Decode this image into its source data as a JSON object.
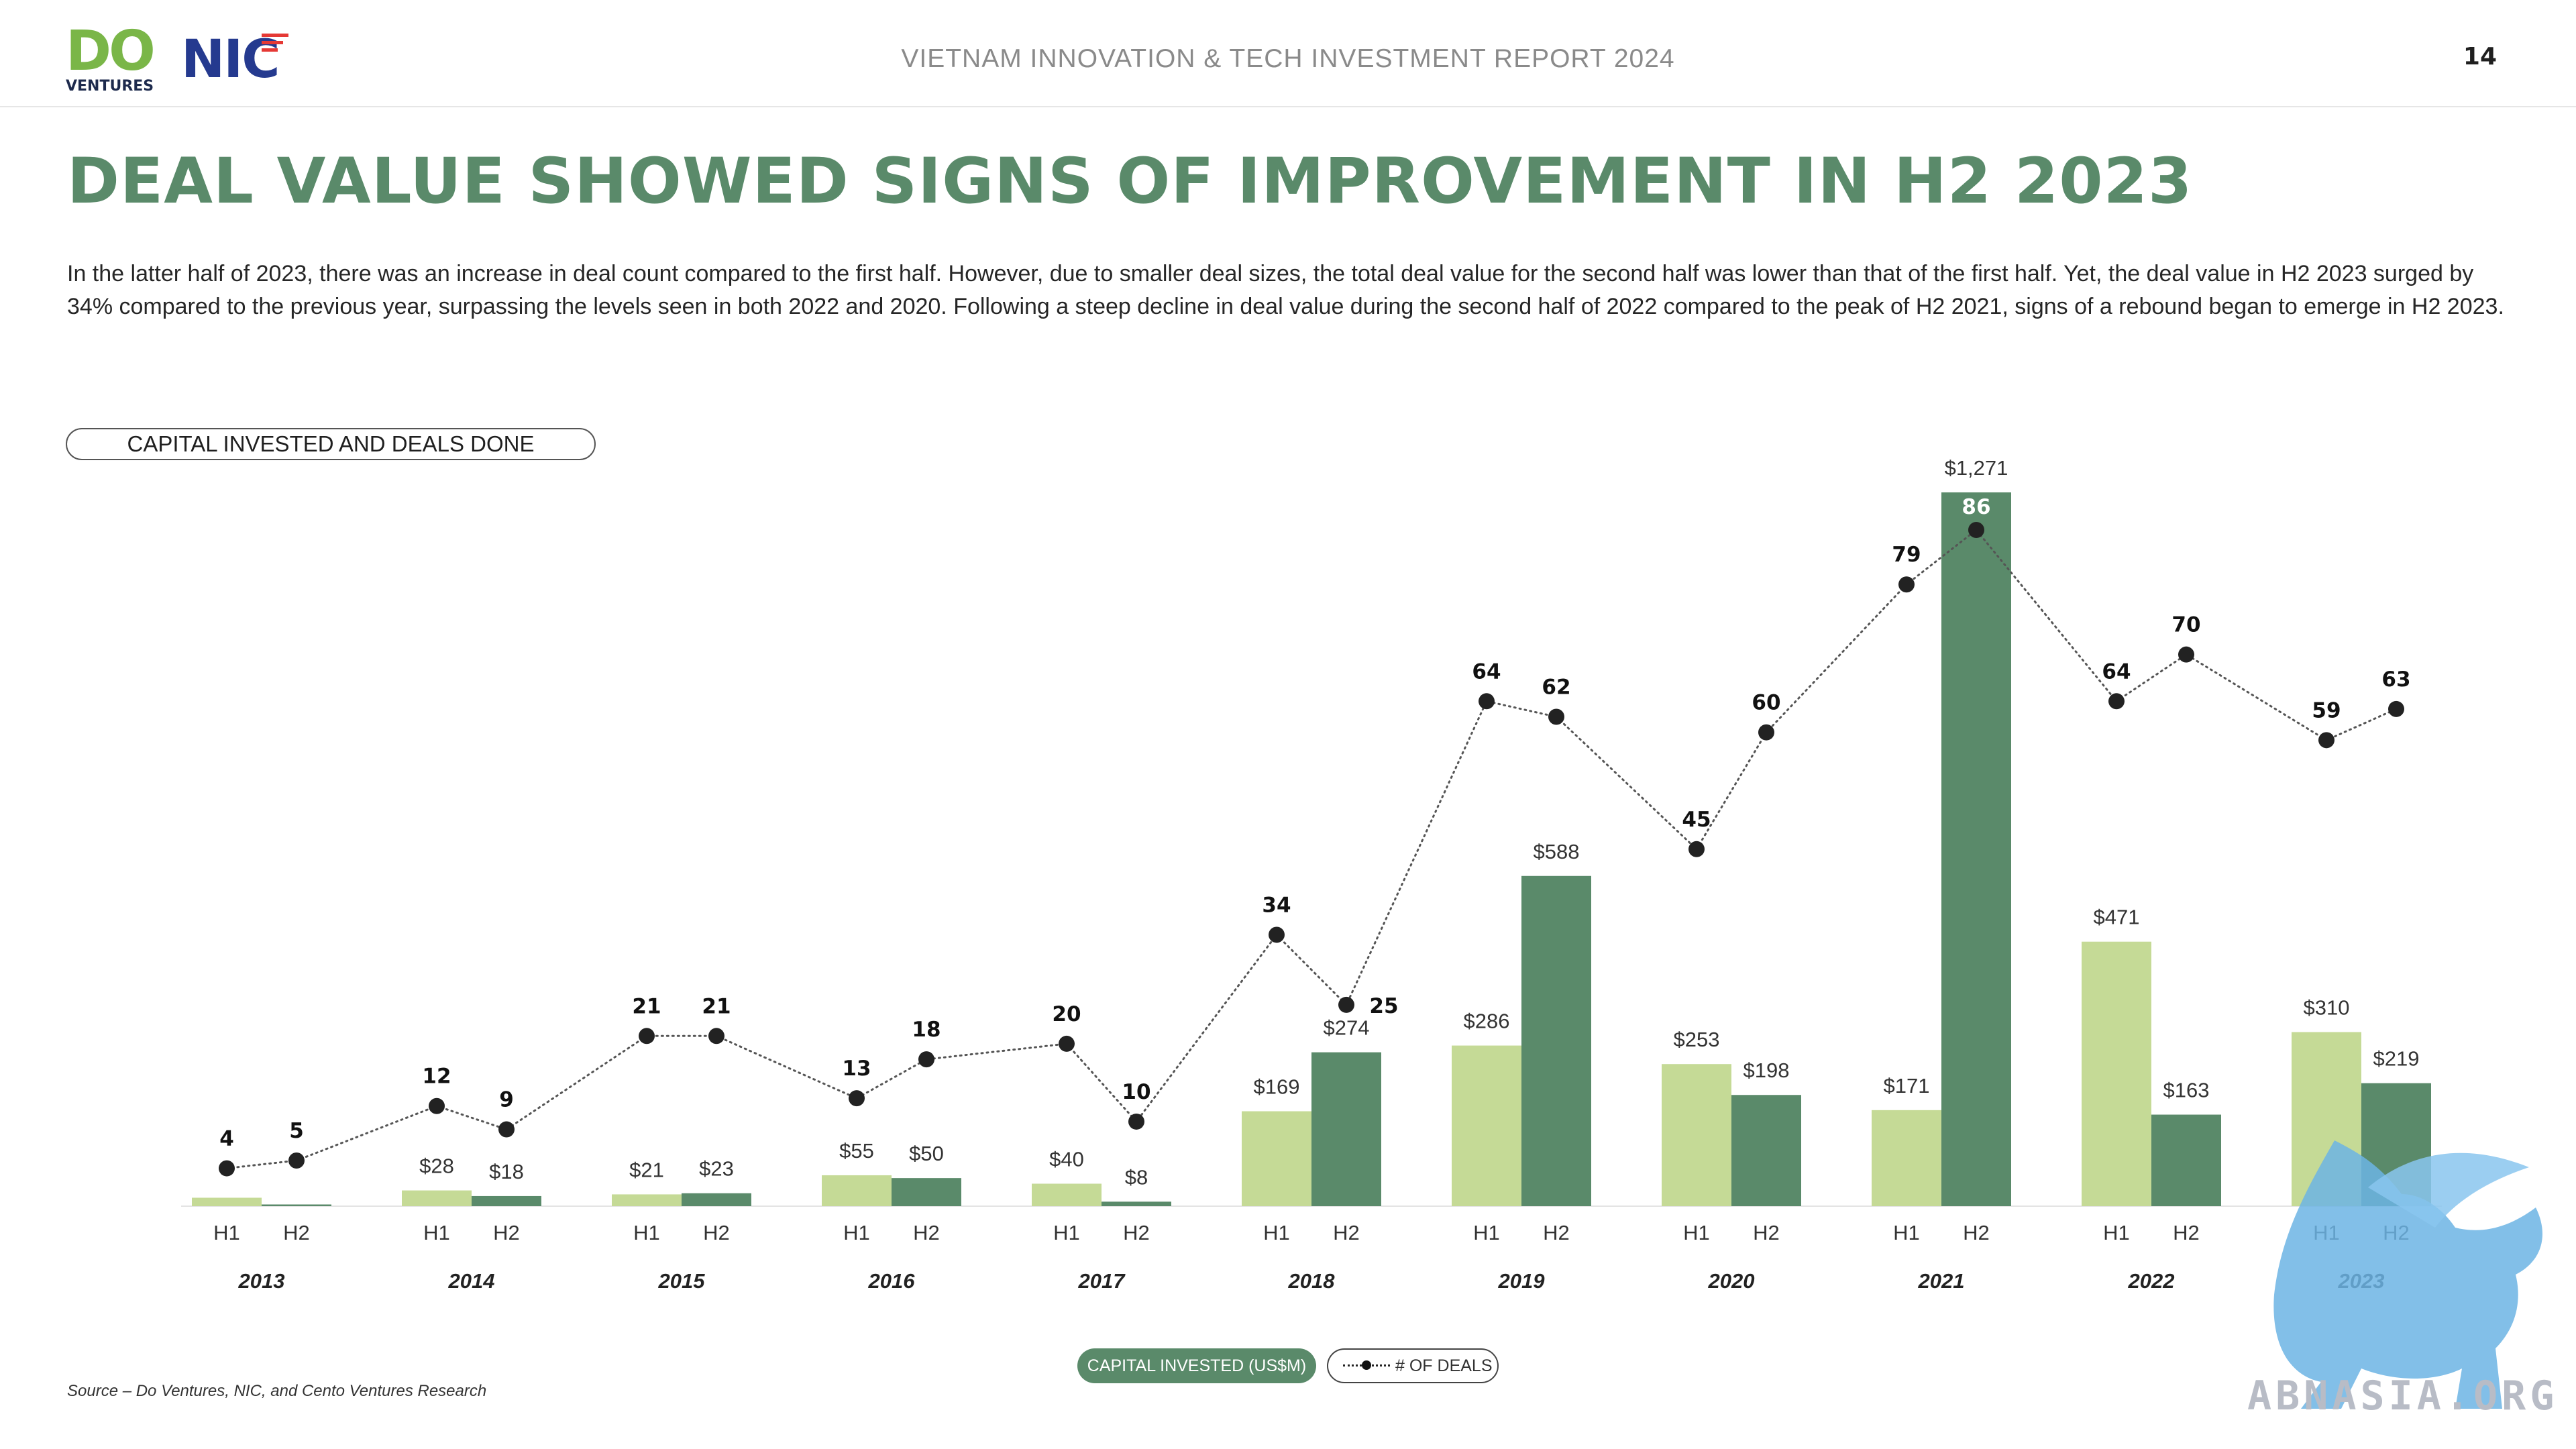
{
  "header": {
    "logo_do": "DO",
    "logo_ventures": "VENTURES",
    "logo_nic": "NIC",
    "report_title": "VIETNAM INNOVATION & TECH INVESTMENT REPORT 2024",
    "page_number": "14"
  },
  "headline": "DEAL VALUE SHOWED SIGNS OF IMPROVEMENT IN H2 2023",
  "description": "In the latter half of 2023, there was an increase in deal count compared to the first half. However, due to smaller deal sizes, the total deal value for the second half was lower than that of the first half. Yet, the deal value in H2 2023 surged by 34% compared to the previous year, surpassing the levels seen in both 2022 and 2020. Following a steep decline in deal value during the second half of 2022 compared to the peak of H2 2021, signs of a rebound began to emerge in H2 2023.",
  "chart_title": "CAPITAL INVESTED AND DEALS DONE",
  "legend": {
    "bars": "CAPITAL INVESTED (US$M)",
    "line": "# OF DEALS"
  },
  "source": "Source – Do Ventures, NIC, and Cento Ventures Research",
  "watermark": "ABNASIA.ORG",
  "colors": {
    "h1_bar": "#c5da96",
    "h2_bar": "#5a8a6a",
    "line": "#222222",
    "headline": "#5a8a6a"
  },
  "chart_data": {
    "type": "bar",
    "years": [
      "2013",
      "2014",
      "2015",
      "2016",
      "2017",
      "2018",
      "2019",
      "2020",
      "2021",
      "2022",
      "2023"
    ],
    "halves": [
      "H1",
      "H2"
    ],
    "series": [
      {
        "name": "CAPITAL INVESTED (US$M)",
        "h1": [
          15,
          28,
          21,
          55,
          40,
          169,
          286,
          253,
          171,
          471,
          310
        ],
        "h2": [
          3,
          18,
          23,
          50,
          8,
          274,
          588,
          198,
          1271,
          163,
          219
        ],
        "h1_labels": [
          "",
          "$28",
          "$21",
          "$55",
          "$40",
          "$169",
          "$286",
          "$253",
          "$171",
          "$471",
          "$310"
        ],
        "h2_labels": [
          "",
          "$18",
          "$23",
          "$50",
          "$8",
          "$274",
          "$588",
          "$198",
          "$1,271",
          "$163",
          "$219"
        ]
      },
      {
        "name": "# OF DEALS",
        "type": "line",
        "values": [
          4,
          5,
          12,
          9,
          21,
          21,
          13,
          18,
          20,
          10,
          34,
          25,
          64,
          62,
          45,
          60,
          79,
          86,
          64,
          70,
          59,
          63
        ]
      }
    ]
  }
}
